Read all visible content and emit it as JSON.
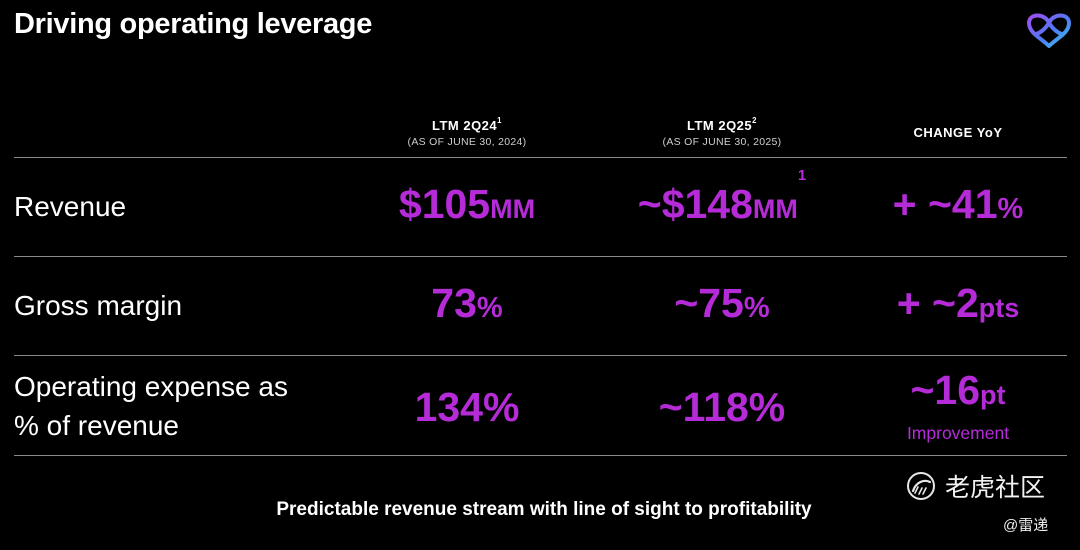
{
  "title": "Driving operating leverage",
  "columns": [
    {
      "label": "LTM 2Q24",
      "sup": "1",
      "sub": "(AS OF JUNE 30, 2024)"
    },
    {
      "label": "LTM 2Q25",
      "sup": "2",
      "sub": "(AS OF JUNE 30, 2025)"
    },
    {
      "label": "CHANGE YoY",
      "sup": "",
      "sub": ""
    }
  ],
  "rows": [
    {
      "label": "Revenue",
      "ltm_2q24": {
        "num": "$105",
        "unit": "MM",
        "sup": ""
      },
      "ltm_2q25": {
        "num": "~$148",
        "unit": "MM",
        "sup": "1"
      },
      "change": {
        "num": "+ ~41",
        "unit": "%"
      }
    },
    {
      "label": "Gross margin",
      "ltm_2q24": {
        "num": "73",
        "unit": "%"
      },
      "ltm_2q25": {
        "num": "~75",
        "unit": "%"
      },
      "change": {
        "num": "+ ~2",
        "unit": "pts"
      }
    },
    {
      "label_line1": "Operating expense as",
      "label_line2": "% of revenue",
      "ltm_2q24": {
        "num": "134%"
      },
      "ltm_2q25": {
        "num": "~118%"
      },
      "change": {
        "num": "~16",
        "unit": "pt",
        "note": "Improvement"
      }
    }
  ],
  "footer": "Predictable revenue stream with line of sight to profitability",
  "watermark": {
    "text": "老虎社区",
    "credit": "@雷递"
  },
  "colors": {
    "accent": "#b62bd8",
    "background": "#000000",
    "text": "#ffffff"
  }
}
